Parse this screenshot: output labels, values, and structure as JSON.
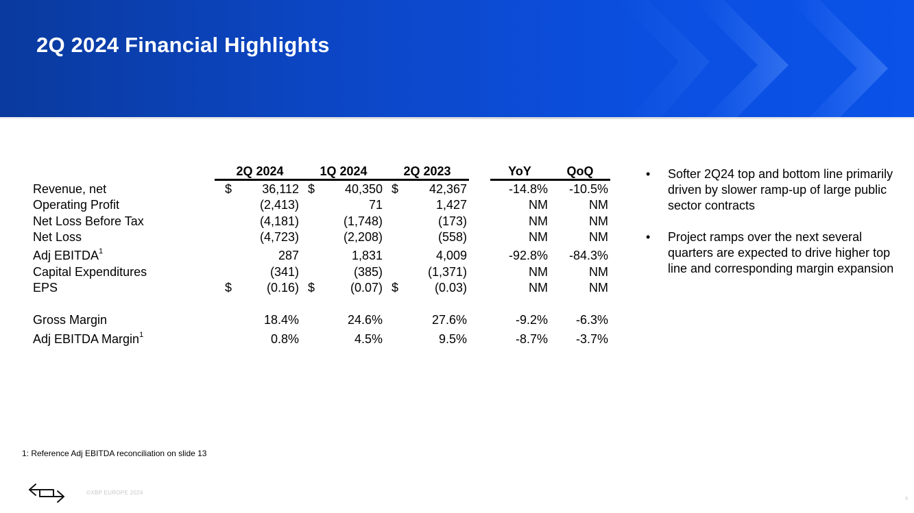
{
  "header": {
    "title": "2Q 2024 Financial Highlights"
  },
  "table": {
    "columns": [
      "2Q 2024",
      "1Q 2024",
      "2Q 2023",
      "YoY",
      "QoQ"
    ],
    "rows": [
      {
        "label": "Revenue, net",
        "sup": "",
        "dollar": "$",
        "values": [
          "36,112",
          "40,350",
          "42,367",
          "-14.8%",
          "-10.5%"
        ]
      },
      {
        "label": "Operating Profit",
        "sup": "",
        "dollar": "",
        "values": [
          "(2,413)",
          "71",
          "1,427",
          "NM",
          "NM"
        ]
      },
      {
        "label": "Net Loss Before Tax",
        "sup": "",
        "dollar": "",
        "values": [
          "(4,181)",
          "(1,748)",
          "(173)",
          "NM",
          "NM"
        ]
      },
      {
        "label": "Net Loss",
        "sup": "",
        "dollar": "",
        "values": [
          "(4,723)",
          "(2,208)",
          "(558)",
          "NM",
          "NM"
        ]
      },
      {
        "label": "Adj EBITDA",
        "sup": "1",
        "dollar": "",
        "values": [
          "287",
          "1,831",
          "4,009",
          "-92.8%",
          "-84.3%"
        ]
      },
      {
        "label": "Capital Expenditures",
        "sup": "",
        "dollar": "",
        "values": [
          "(341)",
          "(385)",
          "(1,371)",
          "NM",
          "NM"
        ]
      },
      {
        "label": "EPS",
        "sup": "",
        "dollar": "$",
        "values": [
          "(0.16)",
          "(0.07)",
          "(0.03)",
          "NM",
          "NM"
        ]
      },
      {
        "label": "Gross Margin",
        "sup": "",
        "dollar": "",
        "values": [
          "18.4%",
          "24.6%",
          "27.6%",
          "-9.2%",
          "-6.3%"
        ]
      },
      {
        "label": "Adj EBITDA Margin",
        "sup": "1",
        "dollar": "",
        "values": [
          "0.8%",
          "4.5%",
          "9.5%",
          "-8.7%",
          "-3.7%"
        ]
      }
    ]
  },
  "bullets": [
    "Softer 2Q24 top and bottom line primarily driven by slower ramp-up of large public sector contracts",
    "Project ramps over the next several quarters are expected to drive higher top line and corresponding margin expansion"
  ],
  "bullet_glyph": "•",
  "footnote": "1: Reference Adj EBITDA reconciliation on slide 13",
  "footer": {
    "copyright": "©XBP EUROPE 2024",
    "page": "6"
  },
  "colors": {
    "banner": "#0c46c4",
    "banner_dark": "#0a3a9e",
    "text": "#000000"
  }
}
